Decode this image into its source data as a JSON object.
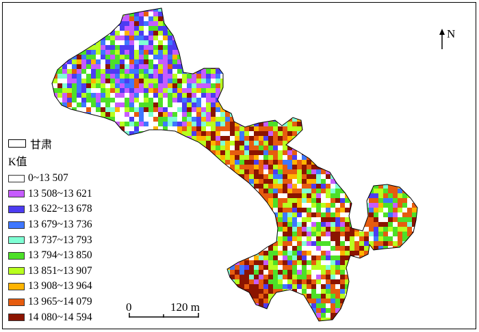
{
  "boundary_legend": {
    "label": "甘肃"
  },
  "legend_title": "K值",
  "classes": [
    {
      "label": "0~13 507",
      "color": "#ffffff"
    },
    {
      "label": "13 508~13 621",
      "color": "#c65cff"
    },
    {
      "label": "13 622~13 678",
      "color": "#4c3cf2"
    },
    {
      "label": "13 679~13 736",
      "color": "#3f77ff"
    },
    {
      "label": "13 737~13 793",
      "color": "#7fffd4"
    },
    {
      "label": "13 794~13 850",
      "color": "#4de028"
    },
    {
      "label": "13 851~13 907",
      "color": "#b8ff1e"
    },
    {
      "label": "13 908~13 964",
      "color": "#ffb400"
    },
    {
      "label": "13 965~14 079",
      "color": "#e65c0f"
    },
    {
      "label": "14 080~14 594",
      "color": "#8b1400"
    }
  ],
  "north_arrow": {
    "label": "N"
  },
  "scale_bar": {
    "start": "0",
    "end": "120 m"
  },
  "colors": {
    "border": "#000000",
    "background": "#ffffff"
  },
  "icons": {
    "north": "north-arrow-icon"
  }
}
